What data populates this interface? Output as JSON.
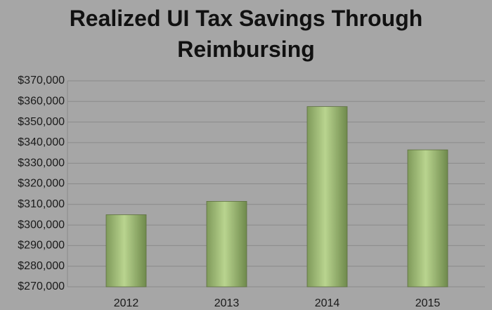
{
  "chart_data": {
    "type": "bar",
    "title": "Realized UI Tax Savings Through Reimbursing",
    "categories": [
      "2012",
      "2013",
      "2014",
      "2015"
    ],
    "values": [
      305000,
      311500,
      357500,
      336500
    ],
    "color": "#b9d48f",
    "ylim": [
      270000,
      370000
    ],
    "yticks": [
      {
        "value": 270000,
        "label": "$270,000"
      },
      {
        "value": 280000,
        "label": "$280,000"
      },
      {
        "value": 290000,
        "label": "$290,000"
      },
      {
        "value": 300000,
        "label": "$300,000"
      },
      {
        "value": 310000,
        "label": "$310,000"
      },
      {
        "value": 320000,
        "label": "$320,000"
      },
      {
        "value": 330000,
        "label": "$330,000"
      },
      {
        "value": 340000,
        "label": "$340,000"
      },
      {
        "value": 350000,
        "label": "$350,000"
      },
      {
        "value": 360000,
        "label": "$360,000"
      },
      {
        "value": 370000,
        "label": "$370,000"
      }
    ],
    "grid": true
  }
}
